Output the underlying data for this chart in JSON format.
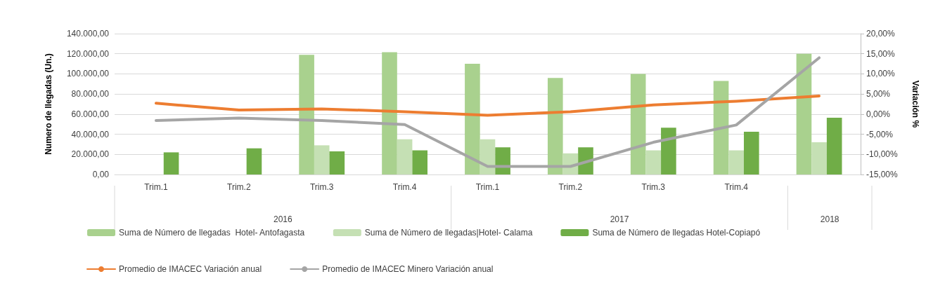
{
  "chart_data": {
    "type": "bar",
    "ylabel": "Numero de llegadas (Un.)",
    "y2label": "Variación %",
    "categories": [
      "Trim.1",
      "Trim.2",
      "Trim.3",
      "Trim.4",
      "Trim.1",
      "Trim.2",
      "Trim.3",
      "Trim.4",
      null
    ],
    "annotations": [
      "2016",
      "2017",
      "2018"
    ],
    "series": [
      {
        "name": "Suma de Número de llegadas  Hotel- Antofagasta",
        "color": "#a9d18e",
        "values": [
          null,
          null,
          119000,
          121500,
          110000,
          96000,
          100000,
          93000,
          120000
        ]
      },
      {
        "name": "Suma de Número de llegadas|Hotel- Calama",
        "color": "#c5e0b4",
        "values": [
          null,
          null,
          29000,
          35000,
          35000,
          21000,
          24000,
          24000,
          32000
        ]
      },
      {
        "name": "Suma de Número de llegadas Hotel-Copiapó",
        "color": "#70ad47",
        "values": [
          22000,
          26000,
          23000,
          24000,
          27000,
          27000,
          46500,
          42500,
          56500
        ]
      },
      {
        "name": "Promedio de IMACEC Variación anual",
        "type": "line",
        "axis": "y2",
        "color": "#ed7d31",
        "values": [
          2.7,
          1.0,
          1.3,
          0.6,
          -0.3,
          0.6,
          2.3,
          3.2,
          4.5
        ]
      },
      {
        "name": "Promedio de IMACEC Minero Variación anual",
        "type": "line",
        "axis": "y2",
        "color": "#a5a5a5",
        "values": [
          -1.6,
          -1.0,
          -1.6,
          -2.6,
          -13,
          -13,
          -7,
          -2.7,
          14
        ]
      }
    ],
    "ylim": [
      0,
      140000
    ],
    "yticks": [
      {
        "value": 0,
        "label": "0,00"
      },
      {
        "value": 20000,
        "label": "20.000,00"
      },
      {
        "value": 40000,
        "label": "40.000,00"
      },
      {
        "value": 60000,
        "label": "60.000,00"
      },
      {
        "value": 80000,
        "label": "80.000,00"
      },
      {
        "value": 100000,
        "label": "100.000,00"
      },
      {
        "value": 120000,
        "label": "120.000,00"
      },
      {
        "value": 140000,
        "label": "140.000,00"
      }
    ],
    "y2lim": [
      -15,
      20
    ],
    "y2ticks": [
      {
        "value": -15,
        "label": "-15,00%"
      },
      {
        "value": -10,
        "label": "-10,00%"
      },
      {
        "value": -5,
        "label": "-5,00%"
      },
      {
        "value": 0,
        "label": "0,00%"
      },
      {
        "value": 5,
        "label": "5,00%"
      },
      {
        "value": 10,
        "label": "10,00%"
      },
      {
        "value": 15,
        "label": "15,00%"
      },
      {
        "value": 20,
        "label": "20,00%"
      }
    ],
    "grid": "y",
    "legend": "bottom",
    "marker": "none",
    "line_style": "solid"
  }
}
